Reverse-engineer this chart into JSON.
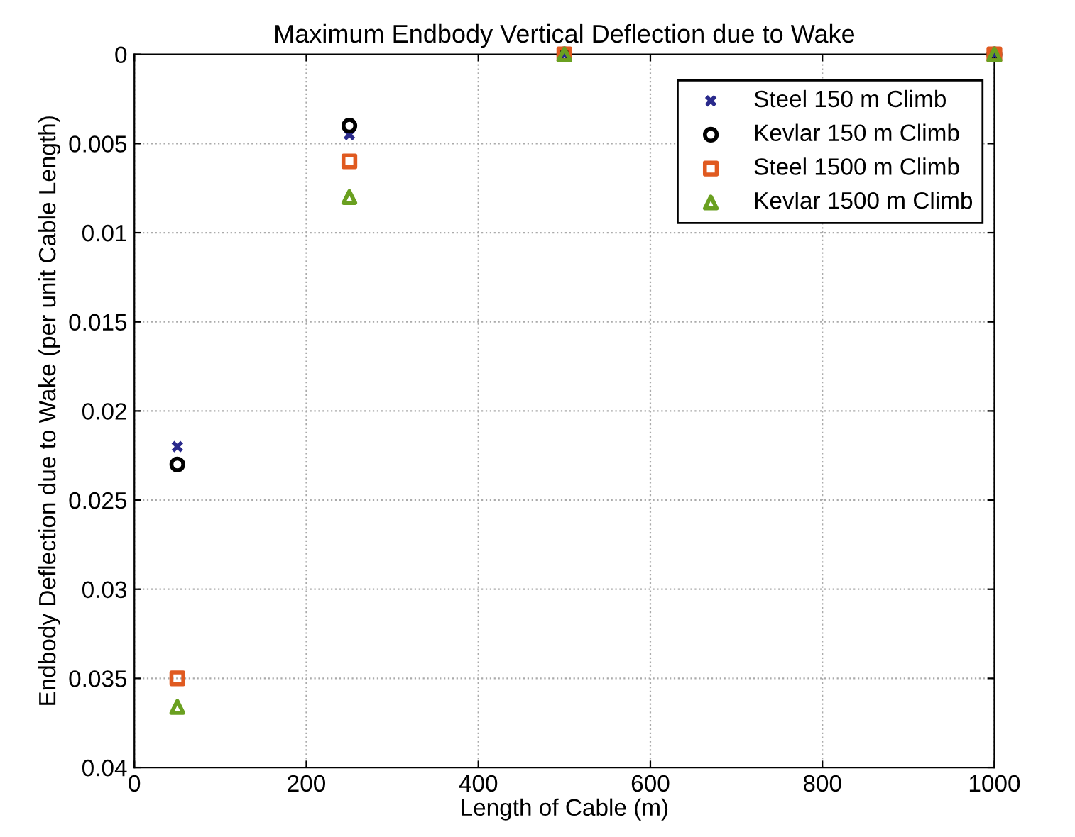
{
  "chart_data": {
    "type": "scatter",
    "title": "Maximum Endbody Vertical Deflection due to Wake",
    "xlabel": "Length of Cable (m)",
    "ylabel": "Endbody Deflection due to Wake (per unit Cable Length)",
    "x": [
      50,
      250,
      500,
      1000
    ],
    "series": [
      {
        "name": "Steel 150 m Climb",
        "color": "#2a2a8c",
        "marker": "cross",
        "values": [
          0.022,
          0.0045,
          0,
          0
        ]
      },
      {
        "name": "Kevlar 150 m Climb",
        "color": "#000000",
        "marker": "circle",
        "values": [
          0.023,
          0.004,
          0,
          0
        ]
      },
      {
        "name": "Steel 1500 m Climb",
        "color": "#e05a20",
        "marker": "square",
        "values": [
          0.035,
          0.006,
          0,
          0
        ]
      },
      {
        "name": "Kevlar 1500 m Climb",
        "color": "#6aa020",
        "marker": "triangle",
        "values": [
          0.0366,
          0.008,
          0,
          0
        ]
      }
    ],
    "xlim": [
      0,
      1000
    ],
    "xticks": [
      0,
      200,
      400,
      600,
      800,
      1000
    ],
    "ylim": [
      0.04,
      0
    ],
    "yticks": [
      0,
      0.005,
      0.01,
      0.015,
      0.02,
      0.025,
      0.03,
      0.035,
      0.04
    ],
    "grid": true,
    "legend": "top right"
  }
}
